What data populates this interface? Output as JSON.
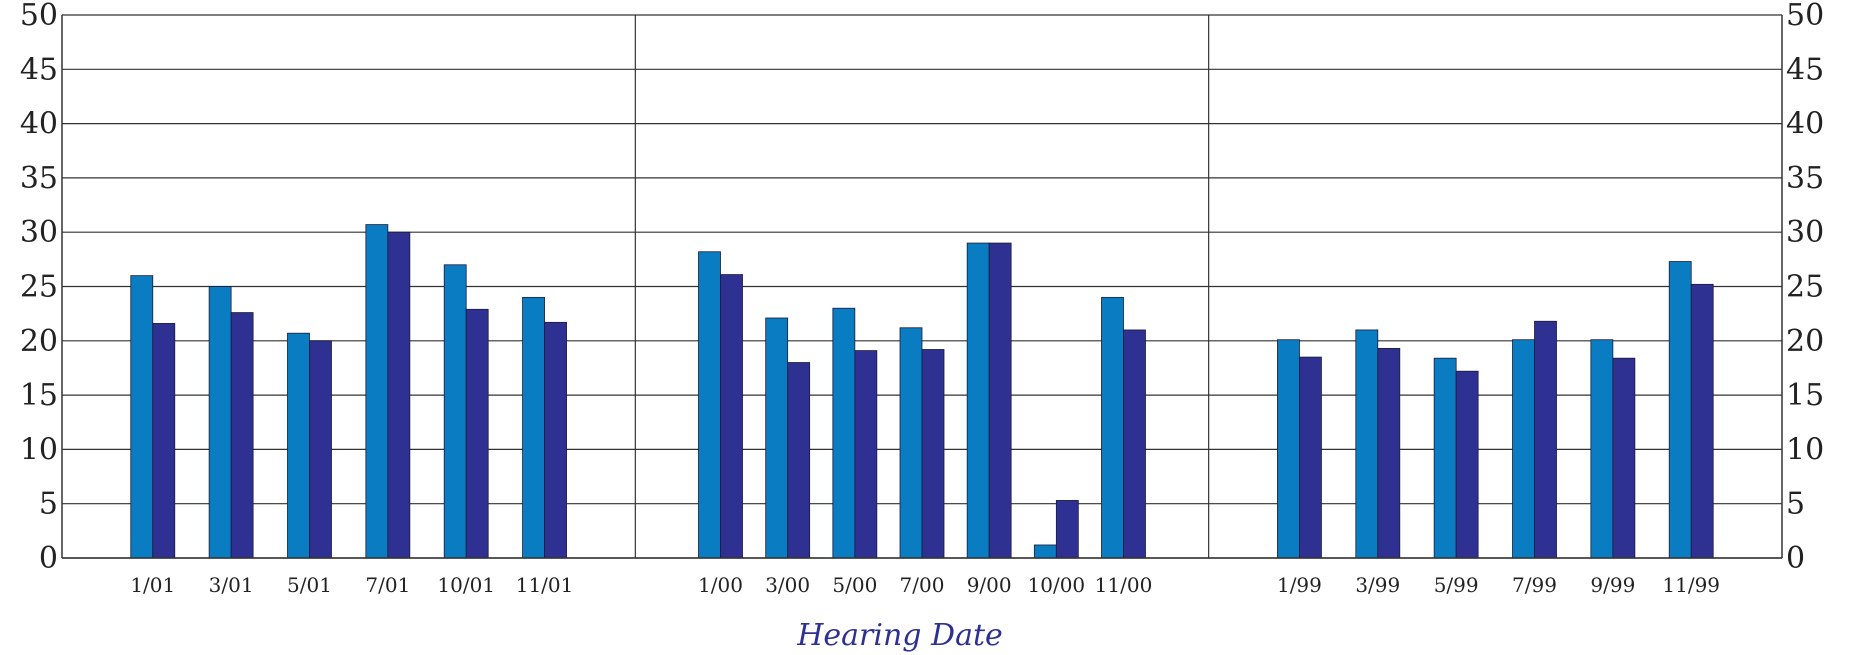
{
  "chart_data": {
    "type": "bar",
    "xlabel": "Hearing Date",
    "ylabel": "",
    "ylim": [
      0,
      50
    ],
    "yticks": [
      0,
      5,
      10,
      15,
      20,
      25,
      30,
      35,
      40,
      45,
      50
    ],
    "grid": true,
    "legend": "none",
    "colors": {
      "series1": "#0a7cc1",
      "series2": "#2e3192",
      "grid": "#333333"
    },
    "panels": [
      {
        "categories": [
          "1/01",
          "3/01",
          "5/01",
          "7/01",
          "10/01",
          "11/01"
        ],
        "series": [
          {
            "values": [
              26,
              25,
              20.7,
              30.7,
              27,
              24
            ]
          },
          {
            "values": [
              21.6,
              22.6,
              20,
              30,
              22.9,
              21.7
            ]
          }
        ]
      },
      {
        "categories": [
          "1/00",
          "3/00",
          "5/00",
          "7/00",
          "9/00",
          "10/00",
          "11/00"
        ],
        "series": [
          {
            "values": [
              28.2,
              22.1,
              23,
              21.2,
              29,
              1.2,
              24
            ]
          },
          {
            "values": [
              26.1,
              18,
              19.1,
              19.2,
              29,
              5.3,
              21
            ]
          }
        ]
      },
      {
        "categories": [
          "1/99",
          "3/99",
          "5/99",
          "7/99",
          "9/99",
          "11/99"
        ],
        "series": [
          {
            "values": [
              20.1,
              21,
              18.4,
              20.1,
              20.1,
              27.3
            ]
          },
          {
            "values": [
              18.5,
              19.3,
              17.2,
              21.8,
              18.4,
              25.2
            ]
          }
        ]
      }
    ]
  }
}
